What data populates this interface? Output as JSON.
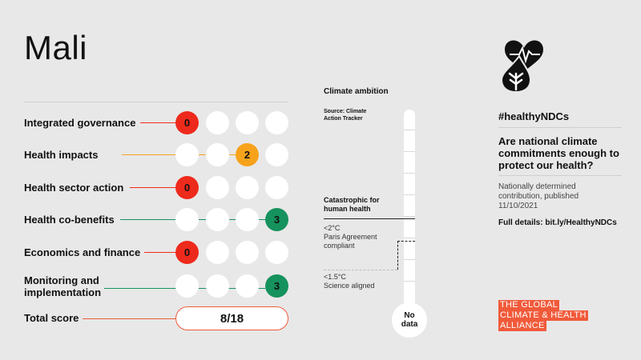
{
  "country": "Mali",
  "criteria": [
    {
      "label": "Integrated governance",
      "score": 0,
      "color": "#ee2a1c",
      "leader_color": "#ee2a1c"
    },
    {
      "label": "Health impacts",
      "score": 2,
      "color": "#f7a21b",
      "leader_color": "#f7a21b"
    },
    {
      "label": "Health sector action",
      "score": 0,
      "color": "#ee2a1c",
      "leader_color": "#ee2a1c"
    },
    {
      "label": "Health co-benefits",
      "score": 3,
      "color": "#15925d",
      "leader_color": "#15925d"
    },
    {
      "label": "Economics and finance",
      "score": 0,
      "color": "#ee2a1c",
      "leader_color": "#ee2a1c"
    },
    {
      "label": "Monitoring and implementation",
      "label_line1": "Monitoring and",
      "label_line2": "implementation",
      "score": 3,
      "color": "#15925d",
      "leader_color": "#15925d"
    }
  ],
  "total": {
    "label": "Total score",
    "value": "8/18",
    "accent": "#f05a3a"
  },
  "climate": {
    "title": "Climate ambition",
    "source_line1": "Source: Climate",
    "source_line2": "Action Tracker",
    "catastrophic_line1": "Catastrophic for",
    "catastrophic_line2": "human health",
    "paris_line1": "<2°C",
    "paris_line2": "Paris Agreement",
    "paris_line3": "compliant",
    "science_line1": "<1.5°C",
    "science_line2": "Science aligned",
    "rating_line1": "No",
    "rating_line2": "data"
  },
  "sidebar": {
    "icon": "heart-drop-leaf-icon",
    "hashtag": "#healthyNDCs",
    "question": "Are national climate commitments enough to protect our health?",
    "ndc_line1": "Nationally determined",
    "ndc_line2": "contribution, published",
    "ndc_line3": "11/10/2021",
    "details": "Full details: bit.ly/HealthyNDCs"
  },
  "brand": {
    "line1": "THE GLOBAL",
    "line2": "CLIMATE & HEALTH",
    "line3": "ALLIANCE",
    "color": "#f05a3a"
  }
}
